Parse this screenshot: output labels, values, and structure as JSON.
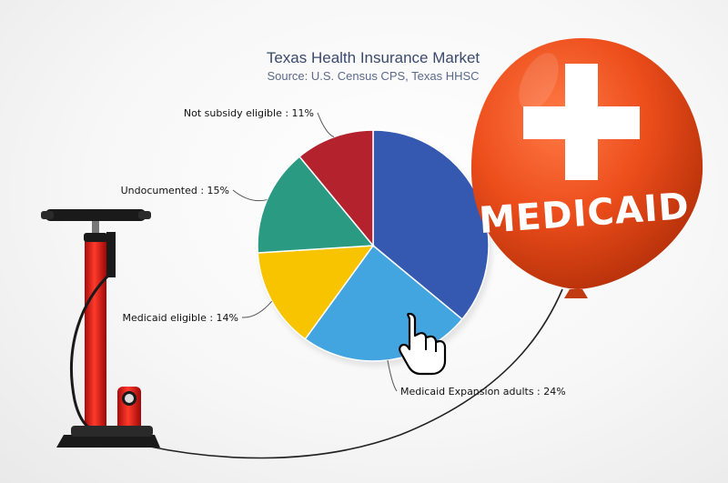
{
  "chart_data": {
    "type": "pie",
    "title": "Texas Health Insurance Market",
    "subtitle": "Source: U.S. Census CPS, Texas HHSC",
    "slices": [
      {
        "label": "Medicaid Expansion adults",
        "display": "Medicaid Expansion adults : 24%",
        "value": 24,
        "color": "#42a5e0"
      },
      {
        "label": "Medicaid eligible",
        "display": "Medicaid eligible : 14%",
        "value": 14,
        "color": "#f8c400"
      },
      {
        "label": "Undocumented",
        "display": "Undocumented : 15%",
        "value": 15,
        "color": "#2a9b82"
      },
      {
        "label": "Not subsidy eligible",
        "display": "Not subsidy eligible : 11%",
        "value": 11,
        "color": "#b3222d"
      },
      {
        "label": "",
        "display": "",
        "value": 36,
        "color": "#3558b0"
      }
    ],
    "legend": "none"
  },
  "balloon": {
    "text": "MEDICAID",
    "color": "#ec4d1b",
    "cross_color": "#ffffff"
  },
  "colors": {
    "pump_body": "#e01818",
    "pump_dark": "#1a1a1a",
    "string": "#222222"
  },
  "icons": [
    "hand-pointer-icon",
    "medical-cross-icon",
    "air-pump-icon"
  ]
}
